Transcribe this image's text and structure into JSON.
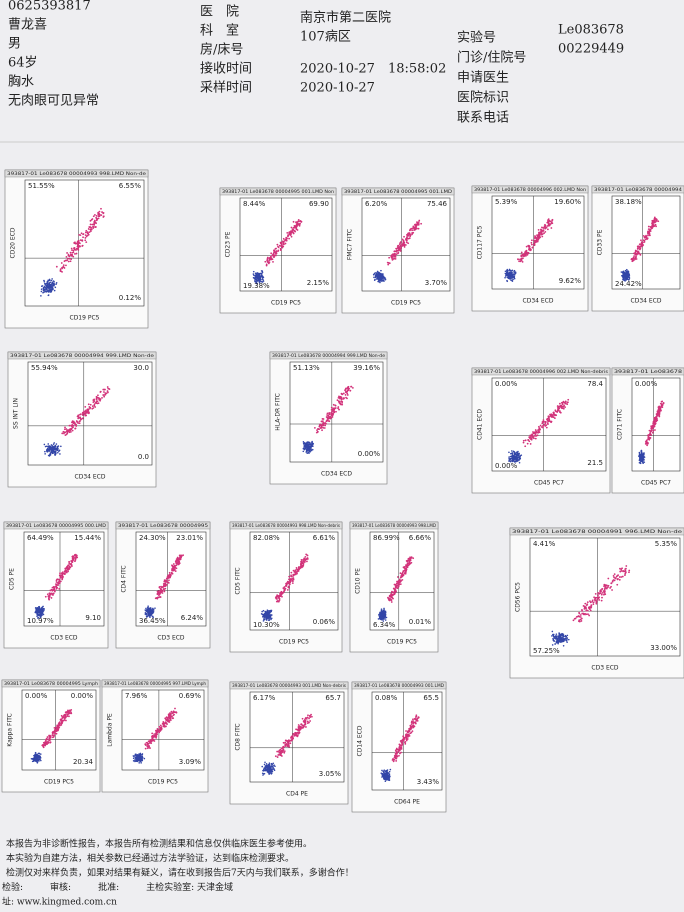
{
  "header": {
    "patient": [
      "0625393817",
      "曹龙喜",
      "男",
      "64岁",
      "胸水",
      "无肉眼可见异常"
    ],
    "fields": [
      {
        "label": "医　院",
        "value": "南京市第二医院"
      },
      {
        "label": "科　室",
        "value": "107病区"
      },
      {
        "label": "房/床号"
      },
      {
        "label": "接收时间",
        "value": "2020-10-27　18:58:02"
      },
      {
        "label": "采样时间",
        "value": "2020-10-27"
      }
    ],
    "right_fields": [
      {
        "label": "实验号",
        "value": "Le083678"
      },
      {
        "label": "门诊/住院号",
        "value": "00229449"
      },
      {
        "label": "申请医生"
      },
      {
        "label": "医院标识"
      },
      {
        "label": "联系电话"
      }
    ]
  },
  "plots": [
    {
      "title": "393817-01 Le083678 00004993 998.LMD Non-de",
      "y": "CD20 ECD",
      "x": "CD19 PC5",
      "q": {
        "ul": "51.55%",
        "ur": "6.55%",
        "lr": "0.12%"
      }
    },
    {
      "title": "393817-01 Le083678 00004995 001.LMD Non",
      "y": "CD23 PE",
      "x": "CD19 PC5",
      "q": {
        "ul": "8.44%",
        "ur": "69.90",
        "ll": "19.38%",
        "lr": "2.15%"
      }
    },
    {
      "title": "393817-01 Le083678 00004995 001.LMD",
      "y": "FMC7 FITC",
      "x": "CD19 PC5",
      "q": {
        "ul": "6.20%",
        "ur": "75.46",
        "lr": "3.70%"
      }
    },
    {
      "title": "393817-01 Le083678 00004996 002.LMD Non",
      "y": "CD117 PC5",
      "x": "CD34 ECD",
      "q": {
        "ul": "5.39%",
        "ur": "19.60%",
        "lr": "9.62%"
      }
    },
    {
      "title": "393817-01 Le083678 00004994",
      "y": "CD33 PE",
      "x": "CD34 ECD",
      "q": {
        "ul": "38.18%",
        "ll": "24.42%"
      }
    },
    {
      "title": "393817-01 Le083678 00004994 999.LMD Non-de",
      "y": "SS INT LIN",
      "x": "CD34 ECD",
      "q": {
        "ul": "55.94%",
        "ur": "30.0",
        "lr": "0.0"
      }
    },
    {
      "title": "393817-01 Le083678 00004994 999.LMD Non-de",
      "y": "HLA-DR FITC",
      "x": "CD34 ECD",
      "q": {
        "ul": "51.13%",
        "ur": "39.16%",
        "lr": "0.00%"
      }
    },
    {
      "title": "393817-01 Le083678 00004996 002.LMD Non-debris",
      "y": "CD41 ECD",
      "x": "CD45 PC7",
      "q": {
        "ul": "0.00%",
        "ur": "78.4",
        "ll": "0.00%",
        "lr": "21.5"
      }
    },
    {
      "title": "393817-01 Le083678",
      "y": "CD71 FITC",
      "x": "CD45 PC7",
      "q": {
        "ul": "0.00%"
      }
    },
    {
      "title": "393817-01 Le083678 00004995 000.LMD",
      "y": "CD5 PE",
      "x": "CD3 ECD",
      "q": {
        "ul": "64.49%",
        "ur": "15.44%",
        "ll": "10.97%",
        "lr": "9.10"
      }
    },
    {
      "title": "393817-01 Le083678 00004995",
      "y": "CD4 FITC",
      "x": "CD3 ECD",
      "q": {
        "ul": "24.30%",
        "ur": "23.01%",
        "ll": "36.45%",
        "lr": "6.24%"
      }
    },
    {
      "title": "393817-01 Le083678 00004993 998.LMD Non-debris",
      "y": "CD5 FITC",
      "x": "CD19 PC5",
      "q": {
        "ul": "82.08%",
        "ur": "6.61%",
        "ll": "10.30%",
        "lr": "0.06%"
      }
    },
    {
      "title": "393817-01 Le083678 00004993 998.LMD",
      "y": "CD10 PE",
      "x": "CD19 PC5",
      "q": {
        "ul": "86.99%",
        "ur": "6.66%",
        "ll": "6.34%",
        "lr": "0.01%"
      }
    },
    {
      "title": "393817-01 Le083678 00004991 996.LMD Non-de",
      "y": "CD56 PC5",
      "x": "CD3 ECD",
      "q": {
        "ul": "4.41%",
        "ur": "5.35%",
        "ll": "57.25%",
        "lr": "33.00%"
      }
    },
    {
      "title": "393817-01 Le083678 00004995 Lymph",
      "y": "Kappa FITC",
      "x": "CD19 PC5",
      "q": {
        "ul": "0.00%",
        "ur": "0.00%",
        "lr": "20.34"
      }
    },
    {
      "title": "393817-01 Le083678 00004995 997.LMD Lymph",
      "y": "Lambda PE",
      "x": "CD19 PC5",
      "q": {
        "ul": "7.96%",
        "ur": "0.69%",
        "lr": "3.09%"
      }
    },
    {
      "title": "393817-01 Le083678 00004993 001.LMD Non-debris",
      "y": "CD8 FITC",
      "x": "CD4 PE",
      "q": {
        "ul": "6.17%",
        "ur": "65.7",
        "lr": "3.05%"
      }
    },
    {
      "title": "393817-01 Le083678 00004993 001.LMD",
      "y": "CD14 ECD",
      "x": "CD64 PE",
      "q": {
        "ul": "0.08%",
        "ur": "65.5",
        "lr": "3.43%"
      }
    }
  ],
  "footer": [
    "本报告为非诊断性报告，本报告所有检测结果和信息仅供临床医生参考使用。",
    "本实验为自建方法，相关参数已经通过方法学验证，达到临床检测要求。",
    "检测仅对来样负责，如果对结果有疑义，请在收到报告后7天内与我们联系，多谢合作！",
    "检验:　　　审核:　　　批准:　　　主检实验室: 天津金域",
    "址: www.kingmed.com.cn"
  ]
}
